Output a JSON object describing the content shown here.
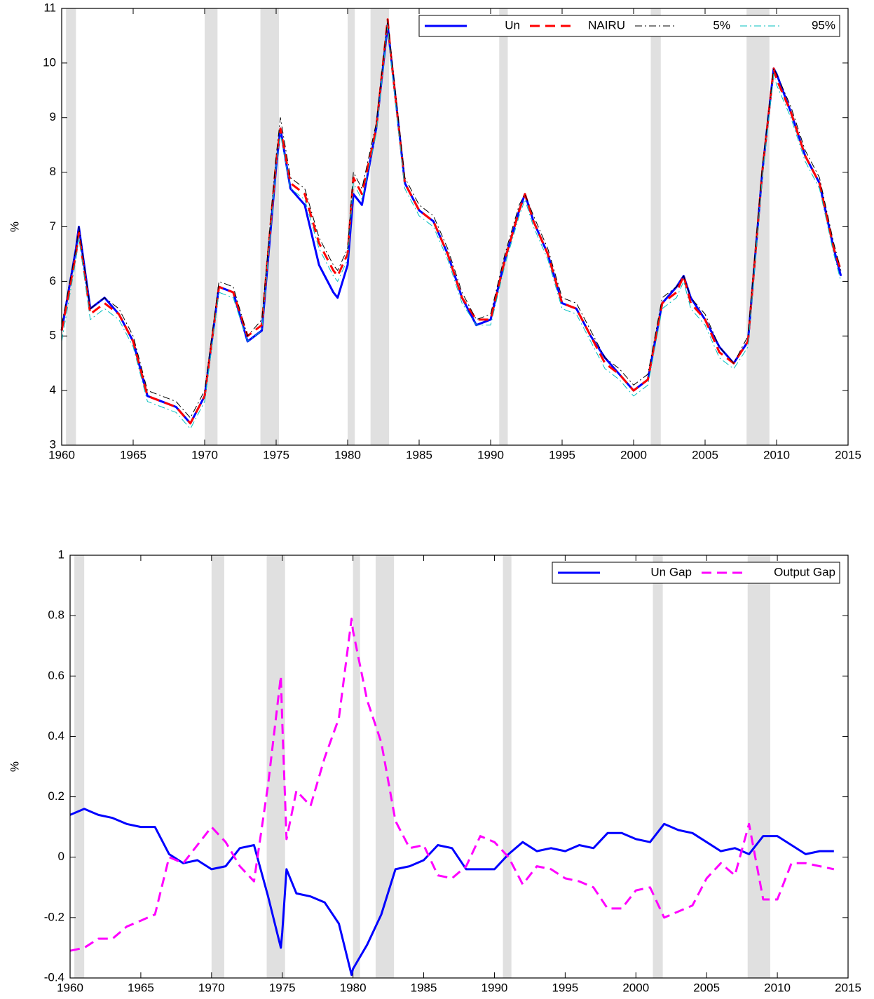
{
  "chart_data": [
    {
      "type": "line",
      "ylabel": "%",
      "x": [
        1960,
        1961,
        1961.2,
        1962,
        1963,
        1964,
        1965,
        1966,
        1967,
        1968,
        1969,
        1970,
        1971,
        1972,
        1973,
        1974,
        1975,
        1975.3,
        1976,
        1977,
        1978,
        1979,
        1979.3,
        1980,
        1980.4,
        1981,
        1982,
        1982.8,
        1983,
        1984,
        1985,
        1986,
        1987,
        1988,
        1989,
        1990,
        1991,
        1992,
        1992.4,
        1993,
        1994,
        1995,
        1996,
        1997,
        1998,
        1999,
        2000,
        2001,
        2002,
        2003,
        2003.5,
        2004,
        2005,
        2006,
        2007,
        2008,
        2009,
        2009.8,
        2010,
        2011,
        2012,
        2013,
        2014,
        2014.5
      ],
      "series": [
        {
          "name": "Un",
          "color": "#0000ff",
          "values": [
            5.1,
            6.6,
            7.0,
            5.5,
            5.7,
            5.4,
            4.9,
            3.9,
            3.8,
            3.7,
            3.4,
            3.9,
            5.9,
            5.8,
            4.9,
            5.1,
            8.1,
            8.8,
            7.7,
            7.4,
            6.3,
            5.8,
            5.7,
            6.3,
            7.6,
            7.4,
            8.8,
            10.7,
            10.2,
            7.8,
            7.3,
            7.1,
            6.5,
            5.7,
            5.2,
            5.3,
            6.4,
            7.3,
            7.6,
            7.1,
            6.5,
            5.6,
            5.5,
            5.0,
            4.6,
            4.3,
            4.0,
            4.2,
            5.6,
            5.9,
            6.1,
            5.7,
            5.3,
            4.8,
            4.5,
            4.9,
            8.0,
            9.9,
            9.8,
            9.1,
            8.3,
            7.8,
            6.6,
            6.1
          ]
        },
        {
          "name": "NAIRU",
          "color": "#ff0000",
          "values": [
            5.1,
            6.5,
            6.9,
            5.4,
            5.6,
            5.4,
            4.9,
            3.9,
            3.8,
            3.7,
            3.4,
            3.9,
            5.9,
            5.8,
            5.0,
            5.2,
            8.2,
            8.8,
            7.8,
            7.6,
            6.7,
            6.2,
            6.1,
            6.5,
            7.9,
            7.6,
            8.8,
            10.8,
            10.2,
            7.8,
            7.3,
            7.1,
            6.5,
            5.7,
            5.3,
            5.3,
            6.4,
            7.3,
            7.6,
            7.1,
            6.5,
            5.6,
            5.5,
            5.0,
            4.5,
            4.3,
            4.0,
            4.2,
            5.6,
            5.8,
            6.1,
            5.6,
            5.3,
            4.7,
            4.5,
            4.9,
            8.0,
            9.9,
            9.7,
            9.1,
            8.3,
            7.8,
            6.6,
            6.2
          ]
        },
        {
          "name": "5%",
          "color": "#000000",
          "values": [
            5.2,
            6.6,
            7.0,
            5.5,
            5.7,
            5.5,
            5.0,
            4.0,
            3.9,
            3.8,
            3.5,
            4.0,
            6.0,
            5.9,
            5.0,
            5.3,
            8.3,
            9.0,
            7.9,
            7.7,
            6.8,
            6.3,
            6.2,
            6.6,
            8.0,
            7.7,
            8.9,
            10.8,
            10.3,
            7.9,
            7.4,
            7.2,
            6.6,
            5.8,
            5.3,
            5.4,
            6.5,
            7.4,
            7.6,
            7.2,
            6.6,
            5.7,
            5.6,
            5.1,
            4.6,
            4.4,
            4.1,
            4.3,
            5.7,
            5.9,
            6.1,
            5.7,
            5.4,
            4.8,
            4.5,
            5.0,
            8.1,
            9.9,
            9.8,
            9.2,
            8.4,
            7.9,
            6.7,
            6.2
          ]
        },
        {
          "name": "95%",
          "color": "#00bfbf",
          "values": [
            4.9,
            6.4,
            6.8,
            5.3,
            5.5,
            5.3,
            4.8,
            3.8,
            3.7,
            3.6,
            3.3,
            3.8,
            5.8,
            5.7,
            4.9,
            5.1,
            8.1,
            8.7,
            7.7,
            7.5,
            6.6,
            6.1,
            6.0,
            6.4,
            7.8,
            7.5,
            8.7,
            10.7,
            10.1,
            7.7,
            7.2,
            7.0,
            6.4,
            5.6,
            5.2,
            5.2,
            6.3,
            7.2,
            7.5,
            7.0,
            6.4,
            5.5,
            5.4,
            4.9,
            4.4,
            4.2,
            3.9,
            4.1,
            5.5,
            5.7,
            6.0,
            5.5,
            5.2,
            4.6,
            4.4,
            4.8,
            7.9,
            9.8,
            9.6,
            9.0,
            8.2,
            7.7,
            6.5,
            6.0
          ]
        }
      ],
      "recessions": [
        [
          1960.3,
          1961.0
        ],
        [
          1970.0,
          1970.9
        ],
        [
          1973.9,
          1975.2
        ],
        [
          1980.0,
          1980.5
        ],
        [
          1981.6,
          1982.9
        ],
        [
          1990.6,
          1991.2
        ],
        [
          2001.2,
          2001.9
        ],
        [
          2007.9,
          2009.5
        ]
      ],
      "xlim": [
        1960,
        2015
      ],
      "xticks": [
        1960,
        1965,
        1970,
        1975,
        1980,
        1985,
        1990,
        1995,
        2000,
        2005,
        2010,
        2015
      ],
      "ylim": [
        3,
        11
      ],
      "yticks": [
        3,
        4,
        5,
        6,
        7,
        8,
        9,
        10,
        11
      ],
      "legend": "upper right"
    },
    {
      "type": "line",
      "ylabel": "%",
      "x": [
        1960,
        1961,
        1962,
        1963,
        1964,
        1965,
        1966,
        1967,
        1968,
        1969,
        1970,
        1971,
        1972,
        1973,
        1974,
        1974.9,
        1975,
        1975.3,
        1976,
        1977,
        1978,
        1979,
        1979.9,
        1980,
        1981,
        1982,
        1983,
        1984,
        1985,
        1986,
        1987,
        1988,
        1989,
        1990,
        1991,
        1992,
        1993,
        1994,
        1995,
        1996,
        1997,
        1998,
        1999,
        2000,
        2001,
        2002,
        2003,
        2004,
        2005,
        2006,
        2007,
        2008,
        2009,
        2010,
        2011,
        2012,
        2013,
        2014
      ],
      "series": [
        {
          "name": "Un Gap",
          "color": "#0000ff",
          "values": [
            0.14,
            0.16,
            0.14,
            0.13,
            0.11,
            0.1,
            0.1,
            0.01,
            -0.02,
            -0.01,
            -0.04,
            -0.03,
            0.03,
            0.04,
            -0.13,
            -0.3,
            -0.25,
            -0.04,
            -0.12,
            -0.13,
            -0.15,
            -0.22,
            -0.39,
            -0.37,
            -0.29,
            -0.19,
            -0.04,
            -0.03,
            -0.01,
            0.04,
            0.03,
            -0.04,
            -0.04,
            -0.04,
            0.01,
            0.05,
            0.02,
            0.03,
            0.02,
            0.04,
            0.03,
            0.08,
            0.08,
            0.06,
            0.05,
            0.11,
            0.09,
            0.08,
            0.05,
            0.02,
            0.03,
            0.01,
            0.07,
            0.07,
            0.04,
            0.01,
            0.02,
            0.02
          ]
        },
        {
          "name": "Output Gap",
          "color": "#ff00ff",
          "values": [
            -0.31,
            -0.3,
            -0.27,
            -0.27,
            -0.23,
            -0.21,
            -0.19,
            0.0,
            -0.02,
            0.04,
            0.1,
            0.05,
            -0.03,
            -0.08,
            0.24,
            0.6,
            0.45,
            0.06,
            0.22,
            0.17,
            0.33,
            0.46,
            0.79,
            0.75,
            0.52,
            0.38,
            0.12,
            0.03,
            0.04,
            -0.06,
            -0.07,
            -0.03,
            0.07,
            0.05,
            0.0,
            -0.09,
            -0.03,
            -0.04,
            -0.07,
            -0.08,
            -0.1,
            -0.17,
            -0.17,
            -0.11,
            -0.1,
            -0.2,
            -0.18,
            -0.16,
            -0.07,
            -0.02,
            -0.06,
            0.11,
            -0.14,
            -0.14,
            -0.02,
            -0.02,
            -0.03,
            -0.04
          ]
        }
      ],
      "recessions": [
        [
          1960.3,
          1961.0
        ],
        [
          1970.0,
          1970.9
        ],
        [
          1973.9,
          1975.2
        ],
        [
          1980.0,
          1980.5
        ],
        [
          1981.6,
          1982.9
        ],
        [
          1990.6,
          1991.2
        ],
        [
          2001.2,
          2001.9
        ],
        [
          2007.9,
          2009.5
        ]
      ],
      "xlim": [
        1960,
        2015
      ],
      "xticks": [
        1960,
        1965,
        1970,
        1975,
        1980,
        1985,
        1990,
        1995,
        2000,
        2005,
        2010,
        2015
      ],
      "ylim": [
        -0.4,
        1
      ],
      "yticks": [
        -0.4,
        -0.2,
        0,
        0.2,
        0.4,
        0.6,
        0.8,
        1
      ],
      "legend": "upper right"
    }
  ]
}
